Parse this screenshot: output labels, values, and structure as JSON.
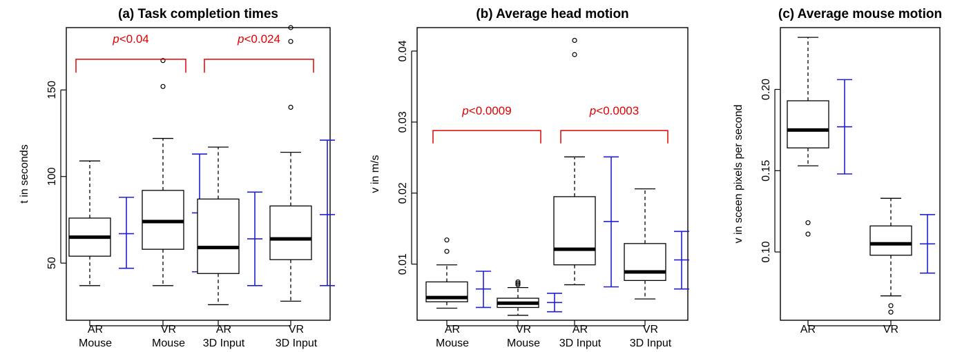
{
  "chart_data": [
    {
      "type": "boxplot",
      "title": "(a) Task completion times",
      "ylabel": "t in seconds",
      "ylim": [
        17,
        186
      ],
      "yticks": [
        50,
        100,
        150
      ],
      "categories": [
        [
          "AR",
          "Mouse"
        ],
        [
          "VR",
          "Mouse"
        ],
        [
          "AR",
          "3D Input"
        ],
        [
          "VR",
          "3D Input"
        ]
      ],
      "boxes": [
        {
          "whisker_low": 37,
          "q1": 54,
          "median": 65,
          "q3": 76,
          "whisker_high": 109,
          "outliers": []
        },
        {
          "whisker_low": 37,
          "q1": 58,
          "median": 74,
          "q3": 92,
          "whisker_high": 122,
          "outliers": [
            152,
            167
          ]
        },
        {
          "whisker_low": 26,
          "q1": 44,
          "median": 59,
          "q3": 87,
          "whisker_high": 117,
          "outliers": []
        },
        {
          "whisker_low": 28,
          "q1": 52,
          "median": 64,
          "q3": 83,
          "whisker_high": 114,
          "outliers": [
            140,
            178,
            186
          ]
        }
      ],
      "mean_sd": [
        {
          "low": 47,
          "mean": 67,
          "high": 88
        },
        {
          "low": 45,
          "mean": 79,
          "high": 113
        },
        {
          "low": 37,
          "mean": 64,
          "high": 91
        },
        {
          "low": 37,
          "mean": 78,
          "high": 121
        }
      ],
      "brackets": [
        {
          "from": 0,
          "to": 1,
          "y": 160,
          "top": 174,
          "label_italic": "p",
          "label_rest": "<0.04"
        },
        {
          "from": 2,
          "to": 3,
          "y": 160,
          "top": 174,
          "label_italic": "p",
          "label_rest": "<0.024"
        }
      ]
    },
    {
      "type": "boxplot",
      "title": "(b) Average head motion",
      "ylabel": "v in m/s",
      "ylim": [
        0.0021,
        0.0433
      ],
      "yticks": [
        0.01,
        0.02,
        0.03,
        0.04
      ],
      "categories": [
        [
          "AR",
          "Mouse"
        ],
        [
          "VR",
          "Mouse"
        ],
        [
          "AR",
          "3D Input"
        ],
        [
          "VR",
          "3D Input"
        ]
      ],
      "boxes": [
        {
          "whisker_low": 0.0038,
          "q1": 0.0047,
          "median": 0.0053,
          "q3": 0.0075,
          "whisker_high": 0.0099,
          "outliers": [
            0.0118,
            0.0134
          ]
        },
        {
          "whisker_low": 0.0028,
          "q1": 0.0039,
          "median": 0.0045,
          "q3": 0.0052,
          "whisker_high": 0.0067,
          "outliers": [
            0.0071,
            0.0073,
            0.0075
          ]
        },
        {
          "whisker_low": 0.0071,
          "q1": 0.0099,
          "median": 0.0121,
          "q3": 0.0195,
          "whisker_high": 0.0251,
          "outliers": [
            0.0395,
            0.0415
          ]
        },
        {
          "whisker_low": 0.0051,
          "q1": 0.0077,
          "median": 0.0089,
          "q3": 0.0129,
          "whisker_high": 0.0206,
          "outliers": []
        }
      ],
      "mean_sd": [
        {
          "low": 0.0039,
          "mean": 0.0065,
          "high": 0.009
        },
        {
          "low": 0.0033,
          "mean": 0.0046,
          "high": 0.0059
        },
        {
          "low": 0.0068,
          "mean": 0.016,
          "high": 0.0251
        },
        {
          "low": 0.0065,
          "mean": 0.0106,
          "high": 0.0146
        }
      ],
      "brackets": [
        {
          "from": 0,
          "to": 1,
          "y": 0.027,
          "top": 0.0303,
          "label_italic": "p",
          "label_rest": "<0.0009"
        },
        {
          "from": 2,
          "to": 3,
          "y": 0.027,
          "top": 0.0303,
          "label_italic": "p",
          "label_rest": "<0.0003"
        }
      ]
    },
    {
      "type": "boxplot",
      "title": "(c) Average mouse motion",
      "ylabel": "v in sceen pixels per second",
      "ylim": [
        0.058,
        0.238
      ],
      "yticks": [
        0.1,
        0.15,
        0.2
      ],
      "tick_labels": [
        "0.10",
        "0.15",
        "0.20"
      ],
      "categories": [
        [
          "AR"
        ],
        [
          "VR"
        ]
      ],
      "boxes": [
        {
          "whisker_low": 0.153,
          "q1": 0.164,
          "median": 0.175,
          "q3": 0.193,
          "whisker_high": 0.232,
          "outliers": [
            0.111,
            0.118
          ]
        },
        {
          "whisker_low": 0.073,
          "q1": 0.098,
          "median": 0.105,
          "q3": 0.116,
          "whisker_high": 0.133,
          "outliers": [
            0.063,
            0.067
          ]
        }
      ],
      "mean_sd": [
        {
          "low": 0.148,
          "mean": 0.177,
          "high": 0.206
        },
        {
          "low": 0.087,
          "mean": 0.105,
          "high": 0.123
        }
      ],
      "brackets": []
    }
  ]
}
